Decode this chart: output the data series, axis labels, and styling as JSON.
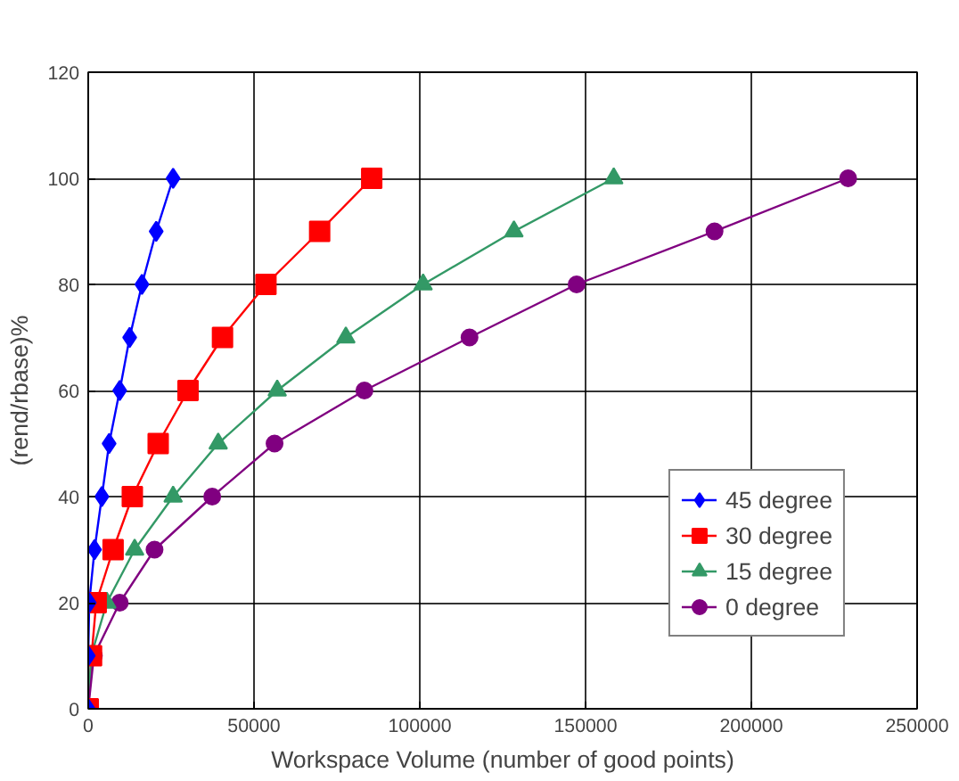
{
  "chart_data": {
    "type": "line",
    "xlabel": "Workspace Volume (number of good points)",
    "ylabel": "(rend/rbase)%",
    "xlim": [
      0,
      250000
    ],
    "ylim": [
      0,
      120
    ],
    "xticks": [
      0,
      50000,
      100000,
      150000,
      200000,
      250000
    ],
    "yticks": [
      0,
      20,
      40,
      60,
      80,
      100,
      120
    ],
    "grid": true,
    "legend": "bottom right",
    "series": [
      {
        "name": "45 degree",
        "color": "#0000ff",
        "marker": "diamond",
        "x": [
          0,
          0,
          300,
          1900,
          4100,
          6300,
          9500,
          12500,
          16200,
          20500,
          25600
        ],
        "values": [
          0,
          10,
          20,
          30,
          40,
          50,
          60,
          70,
          80,
          90,
          100
        ]
      },
      {
        "name": "30 degree",
        "color": "#ff0000",
        "marker": "square",
        "x": [
          0,
          1000,
          2400,
          7500,
          13300,
          21100,
          30100,
          40500,
          53600,
          69800,
          85500
        ],
        "values": [
          0,
          10,
          20,
          30,
          40,
          50,
          60,
          70,
          80,
          90,
          100
        ]
      },
      {
        "name": "15 degree",
        "color": "#339966",
        "marker": "triangle",
        "x": [
          0,
          900,
          5600,
          14000,
          25600,
          39200,
          57000,
          77700,
          101000,
          128400,
          158500
        ],
        "values": [
          0,
          10,
          20,
          30,
          40,
          50,
          60,
          70,
          80,
          90,
          100
        ]
      },
      {
        "name": "0 degree",
        "color": "#800080",
        "marker": "circle",
        "x": [
          0,
          1700,
          9500,
          20000,
          37400,
          56200,
          83300,
          115000,
          147300,
          188900,
          229200
        ],
        "values": [
          0,
          10,
          20,
          30,
          40,
          50,
          60,
          70,
          80,
          90,
          100
        ]
      }
    ]
  }
}
